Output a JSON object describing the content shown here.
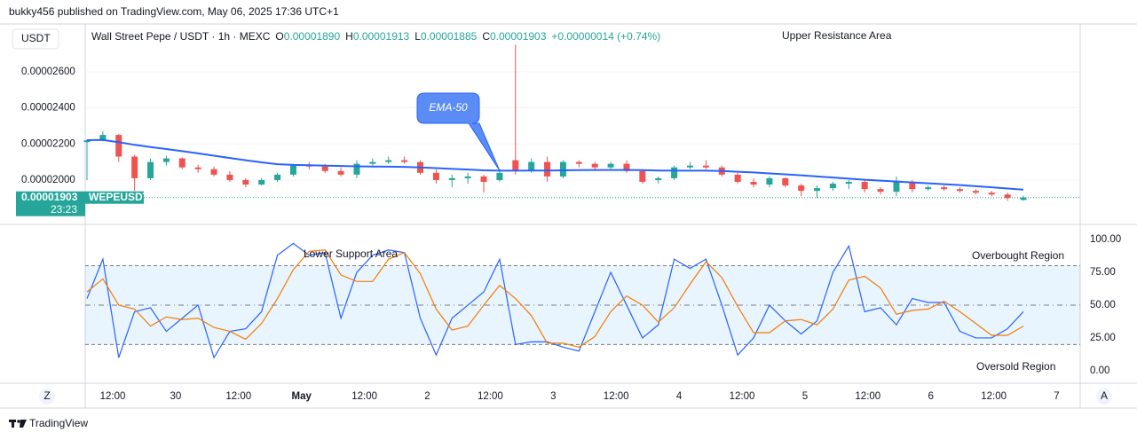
{
  "header": {
    "publisher": "bukky456 published on TradingView.com, May 06, 2025 17:36 UTC+1",
    "brand": "TradingView",
    "left_button": "Z",
    "right_button": "A"
  },
  "chart_data": [
    {
      "type": "candlestick",
      "title": "Wall Street Pepe / USDT · 1h · MEXC",
      "currency": "USDT",
      "ohlc_legend": [
        {
          "label": "O",
          "value": "0.00001890"
        },
        {
          "label": "H",
          "value": "0.00001913"
        },
        {
          "label": "L",
          "value": "0.00001885"
        },
        {
          "label": "C",
          "value": "0.00001903"
        }
      ],
      "change": "+0.00000014 (+0.74%)",
      "up_color": "#26a69a",
      "down_color": "#ef5350",
      "open": [
        2.21e-05,
        2.22e-05,
        2.25e-05,
        2.13e-05,
        2.01e-05,
        2.1e-05,
        2.12e-05,
        2.07e-05,
        2.06e-05,
        2.03e-05,
        2e-05,
        1.975e-05,
        2e-05,
        2.03e-05,
        2.08e-05,
        2.075e-05,
        2.05e-05,
        2.03e-05,
        2.09e-05,
        2.1e-05,
        2.11e-05,
        2.1e-05,
        2.04e-05,
        2e-05,
        2.01e-05,
        2.02e-05,
        2e-05,
        2.11e-05,
        2.05e-05,
        2.1e-05,
        2.02e-05,
        2.1e-05,
        2.09e-05,
        2.07e-05,
        2.09e-05,
        2.05e-05,
        2e-05,
        2.01e-05,
        2.07e-05,
        2.08e-05,
        2.07e-05,
        2.03e-05,
        1.99e-05,
        1.975e-05,
        2.01e-05,
        1.97e-05,
        1.94e-05,
        1.955e-05,
        1.98e-05,
        1.99e-05,
        1.95e-05,
        1.935e-05,
        1.99e-05,
        1.95e-05,
        1.96e-05,
        1.95e-05,
        1.94e-05,
        1.93e-05,
        1.92e-05,
        1.89e-05
      ],
      "high": [
        2.225e-05,
        2.27e-05,
        2.255e-05,
        2.14e-05,
        2.12e-05,
        2.135e-05,
        2.125e-05,
        2.085e-05,
        2.075e-05,
        2.05e-05,
        2.01e-05,
        2.01e-05,
        2.04e-05,
        2.09e-05,
        2.1e-05,
        2.09e-05,
        2.07e-05,
        2.11e-05,
        2.12e-05,
        2.13e-05,
        2.13e-05,
        2.11e-05,
        2.06e-05,
        2.03e-05,
        2.04e-05,
        2.03e-05,
        2.06e-05,
        2.75e-05,
        2.12e-05,
        2.13e-05,
        2.11e-05,
        2.11e-05,
        2.1e-05,
        2.1e-05,
        2.11e-05,
        2.06e-05,
        2.02e-05,
        2.08e-05,
        2.1e-05,
        2.11e-05,
        2.08e-05,
        2.04e-05,
        2.01e-05,
        2.02e-05,
        2.015e-05,
        1.98e-05,
        1.97e-05,
        1.99e-05,
        2e-05,
        2e-05,
        1.96e-05,
        2.02e-05,
        2e-05,
        1.97e-05,
        1.97e-05,
        1.96e-05,
        1.95e-05,
        1.94e-05,
        1.93e-05,
        1.913e-05
      ],
      "low": [
        2e-05,
        2.215e-05,
        2.1e-05,
        1.94e-05,
        2e-05,
        2.08e-05,
        2.06e-05,
        2.04e-05,
        2.02e-05,
        1.99e-05,
        1.96e-05,
        1.97e-05,
        1.99e-05,
        2.02e-05,
        2.06e-05,
        2.04e-05,
        2.02e-05,
        2.01e-05,
        2.08e-05,
        2.09e-05,
        2.09e-05,
        2.03e-05,
        1.98e-05,
        1.96e-05,
        1.98e-05,
        1.93e-05,
        1.99e-05,
        2.03e-05,
        2.04e-05,
        1.99e-05,
        2.01e-05,
        2.07e-05,
        2.05e-05,
        2.06e-05,
        2.04e-05,
        1.98e-05,
        1.98e-05,
        2e-05,
        2.06e-05,
        2.06e-05,
        2.02e-05,
        1.98e-05,
        1.96e-05,
        1.96e-05,
        1.96e-05,
        1.91e-05,
        1.9e-05,
        1.94e-05,
        1.95e-05,
        1.93e-05,
        1.92e-05,
        1.91e-05,
        1.93e-05,
        1.94e-05,
        1.94e-05,
        1.93e-05,
        1.92e-05,
        1.91e-05,
        1.885e-05,
        1.885e-05
      ],
      "close": [
        2.22e-05,
        2.25e-05,
        2.13e-05,
        2.01e-05,
        2.1e-05,
        2.12e-05,
        2.07e-05,
        2.06e-05,
        2.03e-05,
        2e-05,
        1.975e-05,
        2e-05,
        2.03e-05,
        2.08e-05,
        2.075e-05,
        2.05e-05,
        2.03e-05,
        2.09e-05,
        2.1e-05,
        2.11e-05,
        2.1e-05,
        2.04e-05,
        2e-05,
        2.01e-05,
        2.02e-05,
        1.99e-05,
        2.04e-05,
        2.05e-05,
        2.1e-05,
        2.02e-05,
        2.1e-05,
        2.09e-05,
        2.07e-05,
        2.09e-05,
        2.05e-05,
        1.99e-05,
        2.01e-05,
        2.07e-05,
        2.08e-05,
        2.07e-05,
        2.03e-05,
        1.99e-05,
        1.975e-05,
        2.01e-05,
        1.97e-05,
        1.94e-05,
        1.955e-05,
        1.98e-05,
        1.99e-05,
        1.95e-05,
        1.935e-05,
        1.99e-05,
        1.95e-05,
        1.96e-05,
        1.95e-05,
        1.94e-05,
        1.93e-05,
        1.92e-05,
        1.9e-05,
        1.903e-05
      ],
      "series": [
        {
          "name": "EMA-50",
          "color": "#2962ff",
          "values": [
            2.221e-05,
            2.222e-05,
            2.21e-05,
            2.195e-05,
            2.183e-05,
            2.172e-05,
            2.16e-05,
            2.148e-05,
            2.135e-05,
            2.122e-05,
            2.11e-05,
            2.098e-05,
            2.088e-05,
            2.084e-05,
            2.082e-05,
            2.08e-05,
            2.078e-05,
            2.076e-05,
            2.075e-05,
            2.074e-05,
            2.073e-05,
            2.07e-05,
            2.066e-05,
            2.062e-05,
            2.058e-05,
            2.054e-05,
            2.052e-05,
            2.052e-05,
            2.053e-05,
            2.053e-05,
            2.054e-05,
            2.055e-05,
            2.056e-05,
            2.056e-05,
            2.056e-05,
            2.055e-05,
            2.053e-05,
            2.052e-05,
            2.052e-05,
            2.052e-05,
            2.05e-05,
            2.046e-05,
            2.042e-05,
            2.037e-05,
            2.032e-05,
            2.026e-05,
            2.02e-05,
            2.014e-05,
            2.008e-05,
            2.002e-05,
            1.997e-05,
            1.992e-05,
            1.987e-05,
            1.982e-05,
            1.977e-05,
            1.972e-05,
            1.966e-05,
            1.96e-05,
            1.953e-05,
            1.947e-05
          ]
        }
      ],
      "ylim": [
        1.759e-05,
        2.865e-05
      ],
      "yticks": [
        {
          "value": 2e-05,
          "label": "0.00002000"
        },
        {
          "value": 2.2e-05,
          "label": "0.00002200"
        },
        {
          "value": 2.4e-05,
          "label": "0.00002400"
        },
        {
          "value": 2.6e-05,
          "label": "0.00002600"
        }
      ],
      "last_price": {
        "label": "0.00001903",
        "symbol": "WEPEUSDT",
        "countdown": "23:23"
      },
      "annotations": [
        "Upper Resistance Area"
      ]
    },
    {
      "type": "line",
      "series": [
        {
          "color": "#2962ff",
          "values": [
            55,
            85,
            10,
            45,
            48,
            30,
            40,
            50,
            10,
            30,
            32,
            45,
            88,
            97,
            88,
            90,
            40,
            75,
            88,
            92,
            90,
            40,
            12,
            40,
            50,
            60,
            85,
            20,
            22,
            22,
            18,
            15,
            45,
            75,
            50,
            25,
            35,
            85,
            78,
            85,
            50,
            12,
            25,
            50,
            38,
            28,
            38,
            75,
            95,
            45,
            48,
            35,
            55,
            52,
            52,
            30,
            25,
            25,
            32,
            45
          ]
        },
        {
          "color": "#f57c00",
          "values": [
            60,
            70,
            50,
            47,
            34,
            41,
            39,
            40,
            33,
            30,
            24,
            36,
            55,
            77,
            91,
            92,
            73,
            68,
            68,
            85,
            90,
            74,
            47,
            31,
            34,
            50,
            65,
            55,
            42,
            21,
            21,
            18,
            26,
            45,
            57,
            50,
            37,
            48,
            66,
            83,
            71,
            49,
            29,
            29,
            38,
            39,
            35,
            47,
            69,
            72,
            63,
            43,
            46,
            47,
            53,
            45,
            36,
            27,
            27,
            34
          ]
        }
      ],
      "ylim": [
        -9.5,
        110.1
      ],
      "yticks": [
        {
          "value": 0,
          "label": "0.00"
        },
        {
          "value": 25,
          "label": "25.00"
        },
        {
          "value": 50,
          "label": "50.00"
        },
        {
          "value": 75,
          "label": "75.00"
        },
        {
          "value": 100,
          "label": "100.00"
        }
      ],
      "levels": [
        80,
        50,
        20
      ],
      "band_color": "#2196f3",
      "annotations": [
        "Lower Support Area",
        "Overbought Region",
        "Oversold Region"
      ],
      "time_labels": [
        "12:00",
        "30",
        "12:00",
        "May",
        "12:00",
        "2",
        "12:00",
        "3",
        "12:00",
        "4",
        "12:00",
        "5",
        "12:00",
        "6",
        "12:00",
        "7"
      ]
    }
  ]
}
